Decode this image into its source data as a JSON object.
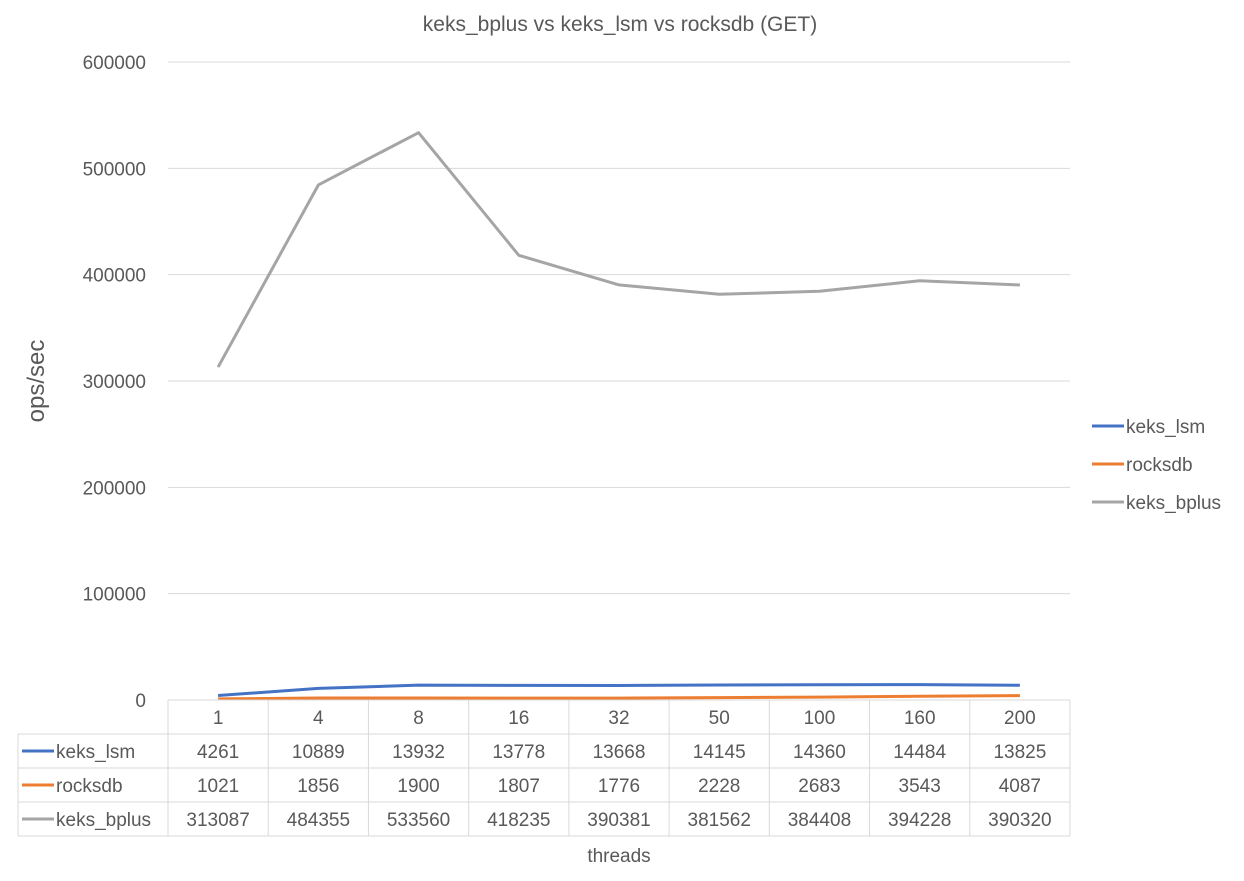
{
  "chart_data": {
    "type": "line",
    "title": "keks_bplus vs keks_lsm vs rocksdb (GET)",
    "xlabel": "threads",
    "ylabel": "ops/sec",
    "categories": [
      "1",
      "4",
      "8",
      "16",
      "32",
      "50",
      "100",
      "160",
      "200"
    ],
    "ylim": [
      0,
      600000
    ],
    "yticks": [
      "0",
      "100000",
      "200000",
      "300000",
      "400000",
      "500000",
      "600000"
    ],
    "grid": true,
    "legend_position": "right",
    "data_table": true,
    "series": [
      {
        "name": "keks_lsm",
        "color": "#4472c4",
        "values": [
          4261,
          10889,
          13932,
          13778,
          13668,
          14145,
          14360,
          14484,
          13825
        ]
      },
      {
        "name": "rocksdb",
        "color": "#ed7d31",
        "values": [
          1021,
          1856,
          1900,
          1807,
          1776,
          2228,
          2683,
          3543,
          4087
        ]
      },
      {
        "name": "keks_bplus",
        "color": "#a5a5a5",
        "values": [
          313087,
          484355,
          533560,
          418235,
          390381,
          381562,
          384408,
          394228,
          390320
        ]
      }
    ]
  }
}
